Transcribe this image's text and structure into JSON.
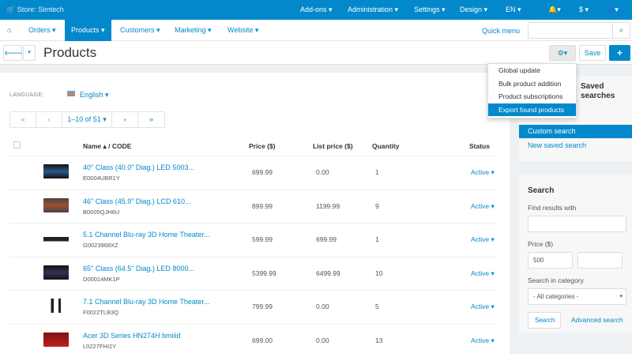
{
  "topbar": {
    "store": "Store: Simtech",
    "menu": [
      "Add-ons ▾",
      "Administration ▾",
      "Settings ▾",
      "Design ▾",
      "EN ▾",
      "▾",
      "$ ▾",
      "▾"
    ]
  },
  "nav": {
    "items": [
      "Orders ▾",
      "Products ▾",
      "Customers ▾",
      "Marketing ▾",
      "Website ▾"
    ],
    "active": "Products",
    "quick_menu": "Quick menu",
    "search_placeholder": ""
  },
  "titlebar": {
    "title": "Products",
    "save": "Save",
    "add": "+"
  },
  "dropdown": {
    "items": [
      "Global update",
      "Bulk product addition",
      "Product subscriptions",
      "Export found products"
    ],
    "selected": "Export found products"
  },
  "language": {
    "label": "LANGUAGE:",
    "value": "English ▾"
  },
  "pager": {
    "first": "«",
    "prev": "‹",
    "range": "1–10 of 51 ▾",
    "next": "›",
    "last": "»"
  },
  "table": {
    "headers": {
      "name": "Name ▴  /   CODE",
      "price": "Price ($)",
      "list_price": "List price ($)",
      "quantity": "Quantity",
      "status": "Status"
    },
    "rows": [
      {
        "name": "40\" Class (40.0\" Diag.) LED 5003...",
        "code": "E0004UBR1Y",
        "price": "699.99",
        "list_price": "0.00",
        "quantity": "1",
        "status": "Active ▾"
      },
      {
        "name": "46\" Class (45.9\" Diag.) LCD 610...",
        "code": "B0005QJH6U",
        "price": "899.99",
        "list_price": "1199.99",
        "quantity": "9",
        "status": "Active ▾"
      },
      {
        "name": "5.1 Channel Blu-ray 3D Home Theater...",
        "code": "G0023968XZ",
        "price": "599.99",
        "list_price": "699.99",
        "quantity": "1",
        "status": "Active ▾"
      },
      {
        "name": "65\" Class (64.5\" Diag.) LED 8000...",
        "code": "D00014MK1P",
        "price": "5399.99",
        "list_price": "6499.99",
        "quantity": "10",
        "status": "Active ▾"
      },
      {
        "name": "7.1 Channel Blu-ray 3D Home Theater...",
        "code": "F0022TLB3Q",
        "price": "799.99",
        "list_price": "0.00",
        "quantity": "5",
        "status": "Active ▾"
      },
      {
        "name": "Acer 3D Series HN274H bmiiid",
        "code": "L0227FHI2Y",
        "price": "699.00",
        "list_price": "0.00",
        "quantity": "13",
        "status": "Active ▾"
      }
    ]
  },
  "saved": {
    "title": "Saved searches",
    "items": [
      "Custom search",
      "New saved search"
    ],
    "selected": "Custom search"
  },
  "search": {
    "title": "Search",
    "find_label": "Find results with",
    "find_value": "",
    "price_label": "Price ($)",
    "price_from": "500",
    "price_to": "",
    "category_label": "Search in category",
    "category_value": "- All categories -",
    "search_btn": "Search",
    "advanced": "Advanced search"
  },
  "colors": {
    "brand": "#0388cc"
  }
}
